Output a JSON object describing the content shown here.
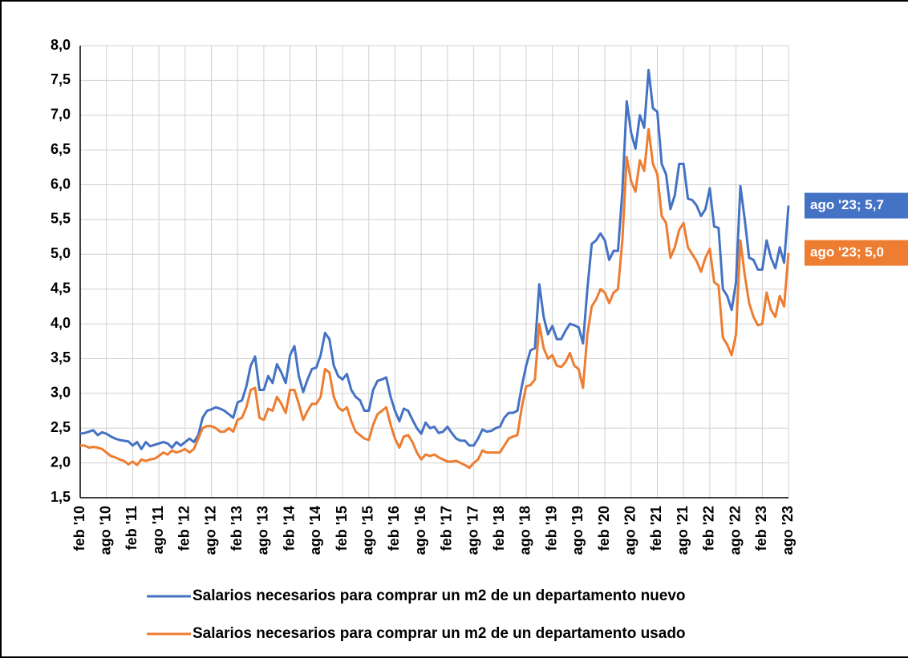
{
  "chart_data": {
    "type": "line",
    "categories": [
      "feb '10",
      null,
      null,
      null,
      null,
      null,
      "ago '10",
      null,
      null,
      null,
      null,
      null,
      "feb '11",
      null,
      null,
      null,
      null,
      null,
      "ago '11",
      null,
      null,
      null,
      null,
      null,
      "feb '12",
      null,
      null,
      null,
      null,
      null,
      "ago '12",
      null,
      null,
      null,
      null,
      null,
      "feb '13",
      null,
      null,
      null,
      null,
      null,
      "ago '13",
      null,
      null,
      null,
      null,
      null,
      "feb '14",
      null,
      null,
      null,
      null,
      null,
      "ago '14",
      null,
      null,
      null,
      null,
      null,
      "feb '15",
      null,
      null,
      null,
      null,
      null,
      "ago '15",
      null,
      null,
      null,
      null,
      null,
      "feb '16",
      null,
      null,
      null,
      null,
      null,
      "ago '16",
      null,
      null,
      null,
      null,
      null,
      "feb '17",
      null,
      null,
      null,
      null,
      null,
      "ago '17",
      null,
      null,
      null,
      null,
      null,
      "feb '18",
      null,
      null,
      null,
      null,
      null,
      "ago '18",
      null,
      null,
      null,
      null,
      null,
      "feb '19",
      null,
      null,
      null,
      null,
      null,
      "ago '19",
      null,
      null,
      null,
      null,
      null,
      "feb '20",
      null,
      null,
      null,
      null,
      null,
      "ago '20",
      null,
      null,
      null,
      null,
      null,
      "feb '21",
      null,
      null,
      null,
      null,
      null,
      "ago '21",
      null,
      null,
      null,
      null,
      null,
      "feb '22",
      null,
      null,
      null,
      null,
      null,
      "ago '22",
      null,
      null,
      null,
      null,
      null,
      "feb '23",
      null,
      null,
      null,
      null,
      null,
      "ago '23"
    ],
    "series": [
      {
        "name": "Salarios necesarios para comprar un m2 de un departamento nuevo",
        "color": "#4472c4",
        "values": [
          2.42,
          2.43,
          2.45,
          2.47,
          2.4,
          2.44,
          2.42,
          2.38,
          2.35,
          2.33,
          2.32,
          2.31,
          2.25,
          2.3,
          2.2,
          2.3,
          2.24,
          2.26,
          2.28,
          2.3,
          2.28,
          2.22,
          2.3,
          2.25,
          2.3,
          2.35,
          2.3,
          2.4,
          2.65,
          2.75,
          2.77,
          2.8,
          2.78,
          2.75,
          2.7,
          2.65,
          2.87,
          2.9,
          3.1,
          3.4,
          3.53,
          3.05,
          3.05,
          3.25,
          3.15,
          3.42,
          3.3,
          3.15,
          3.55,
          3.68,
          3.25,
          3.02,
          3.2,
          3.35,
          3.37,
          3.55,
          3.87,
          3.78,
          3.4,
          3.25,
          3.2,
          3.28,
          3.05,
          2.95,
          2.9,
          2.75,
          2.75,
          3.05,
          3.18,
          3.2,
          3.23,
          2.95,
          2.75,
          2.6,
          2.78,
          2.75,
          2.62,
          2.5,
          2.42,
          2.58,
          2.5,
          2.52,
          2.43,
          2.45,
          2.52,
          2.43,
          2.35,
          2.32,
          2.32,
          2.25,
          2.25,
          2.35,
          2.48,
          2.45,
          2.46,
          2.5,
          2.52,
          2.65,
          2.72,
          2.72,
          2.75,
          3.1,
          3.4,
          3.62,
          3.65,
          4.57,
          4.1,
          3.85,
          3.97,
          3.78,
          3.78,
          3.9,
          4.0,
          3.98,
          3.95,
          3.72,
          4.5,
          5.15,
          5.2,
          5.3,
          5.2,
          4.92,
          5.05,
          5.05,
          5.9,
          7.2,
          6.75,
          6.52,
          7.0,
          6.82,
          7.65,
          7.1,
          7.05,
          6.3,
          6.15,
          5.65,
          5.85,
          6.3,
          6.3,
          5.8,
          5.78,
          5.7,
          5.55,
          5.65,
          5.95,
          5.4,
          5.38,
          4.5,
          4.4,
          4.2,
          4.6,
          5.98,
          5.5,
          4.95,
          4.92,
          4.78,
          4.78,
          5.2,
          4.95,
          4.8,
          5.1,
          4.88,
          5.7
        ]
      },
      {
        "name": "Salarios necesarios para comprar un m2 de un departamento usado",
        "color": "#ed7d31",
        "values": [
          2.25,
          2.25,
          2.22,
          2.23,
          2.22,
          2.2,
          2.15,
          2.1,
          2.08,
          2.05,
          2.03,
          1.98,
          2.02,
          1.97,
          2.05,
          2.03,
          2.05,
          2.06,
          2.1,
          2.15,
          2.12,
          2.18,
          2.15,
          2.17,
          2.2,
          2.15,
          2.2,
          2.35,
          2.5,
          2.53,
          2.53,
          2.5,
          2.45,
          2.45,
          2.5,
          2.45,
          2.62,
          2.65,
          2.8,
          3.05,
          3.08,
          2.65,
          2.62,
          2.78,
          2.75,
          2.95,
          2.85,
          2.72,
          3.05,
          3.05,
          2.85,
          2.62,
          2.75,
          2.85,
          2.85,
          2.95,
          3.35,
          3.3,
          2.95,
          2.8,
          2.75,
          2.8,
          2.6,
          2.45,
          2.4,
          2.35,
          2.33,
          2.55,
          2.7,
          2.75,
          2.8,
          2.55,
          2.35,
          2.22,
          2.38,
          2.4,
          2.3,
          2.15,
          2.05,
          2.12,
          2.1,
          2.12,
          2.08,
          2.05,
          2.02,
          2.02,
          2.03,
          2.0,
          1.97,
          1.93,
          2.0,
          2.05,
          2.18,
          2.15,
          2.15,
          2.15,
          2.15,
          2.25,
          2.35,
          2.38,
          2.4,
          2.8,
          3.1,
          3.12,
          3.2,
          4.0,
          3.65,
          3.5,
          3.55,
          3.4,
          3.38,
          3.45,
          3.58,
          3.4,
          3.35,
          3.08,
          3.85,
          4.25,
          4.35,
          4.5,
          4.45,
          4.3,
          4.45,
          4.5,
          5.2,
          6.4,
          6.05,
          5.9,
          6.35,
          6.2,
          6.8,
          6.3,
          6.15,
          5.55,
          5.45,
          4.95,
          5.1,
          5.35,
          5.45,
          5.1,
          5.0,
          4.9,
          4.75,
          4.95,
          5.08,
          4.6,
          4.55,
          3.8,
          3.7,
          3.55,
          3.85,
          5.2,
          4.7,
          4.3,
          4.1,
          3.98,
          4.0,
          4.45,
          4.2,
          4.1,
          4.4,
          4.25,
          5.02
        ]
      }
    ],
    "annotations": [
      {
        "text": "ago '23; 5,7",
        "series": 0
      },
      {
        "text": "ago '23; 5,0",
        "series": 1
      }
    ],
    "ylim": [
      1.5,
      8.0
    ],
    "yticks": [
      {
        "value": 1.5,
        "label": "1,5"
      },
      {
        "value": 2,
        "label": "2,0"
      },
      {
        "value": 2.5,
        "label": "2,5"
      },
      {
        "value": 3,
        "label": "3,0"
      },
      {
        "value": 3.5,
        "label": "3,5"
      },
      {
        "value": 4,
        "label": "4,0"
      },
      {
        "value": 4.5,
        "label": "4,5"
      },
      {
        "value": 5,
        "label": "5,0"
      },
      {
        "value": 5.5,
        "label": "5,5"
      },
      {
        "value": 6,
        "label": "6,0"
      },
      {
        "value": 6.5,
        "label": "6,5"
      },
      {
        "value": 7,
        "label": "7,0"
      },
      {
        "value": 7.5,
        "label": "7,5"
      },
      {
        "value": 8,
        "label": "8,0"
      }
    ],
    "grid": true,
    "legend": "bottom"
  }
}
